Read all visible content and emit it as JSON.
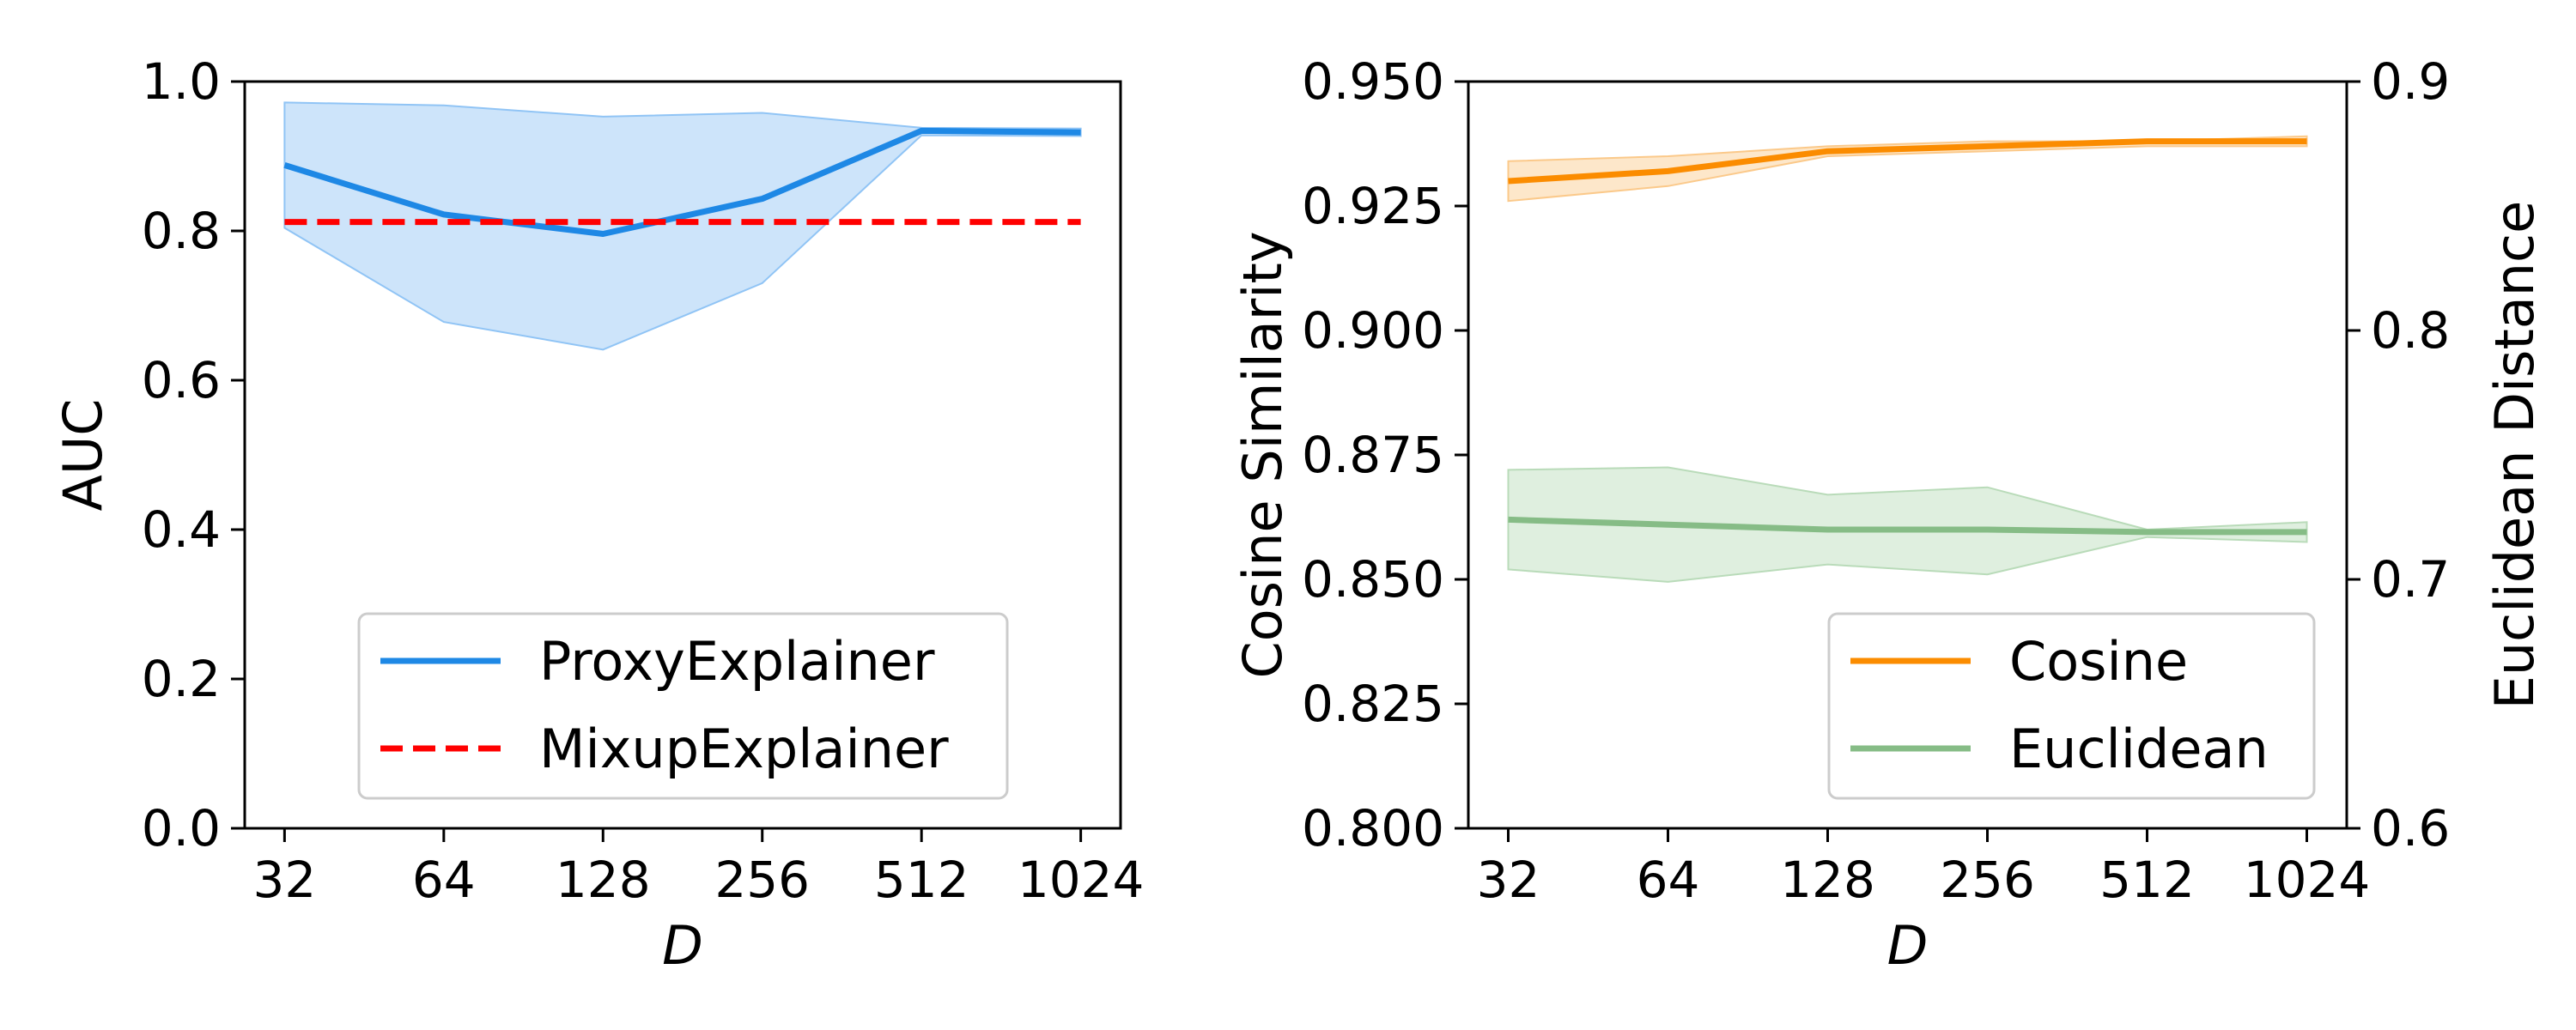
{
  "chart_data": [
    {
      "type": "line",
      "x": [
        32,
        64,
        128,
        256,
        512,
        1024
      ],
      "x_scale": "log2",
      "xlabel": "D",
      "ylabel": "AUC",
      "ylim": [
        0.0,
        1.0
      ],
      "xticks": [
        "32",
        "64",
        "128",
        "256",
        "512",
        "1024"
      ],
      "yticks": [
        "0.0",
        "0.2",
        "0.4",
        "0.6",
        "0.8",
        "1.0"
      ],
      "grid": false,
      "legend_position": "lower-right",
      "series": [
        {
          "name": "ProxyExplainer",
          "values": [
            0.888,
            0.822,
            0.796,
            0.843,
            0.934,
            0.932
          ],
          "band_upper": [
            0.972,
            0.968,
            0.953,
            0.958,
            0.938,
            0.937
          ],
          "band_lower": [
            0.804,
            0.678,
            0.641,
            0.73,
            0.928,
            0.927
          ],
          "color": "#1e88e5",
          "band_color": "#90c4f5",
          "style": "solid"
        },
        {
          "name": "MixupExplainer",
          "values": [
            0.812,
            0.812,
            0.812,
            0.812,
            0.812,
            0.812
          ],
          "color": "#ff0000",
          "style": "dashed"
        }
      ]
    },
    {
      "type": "line",
      "x": [
        32,
        64,
        128,
        256,
        512,
        1024
      ],
      "x_scale": "log2",
      "xlabel": "D",
      "ylabel": "Cosine Similarity",
      "ylabel_right": "Euclidean Distance",
      "ylim": [
        0.8,
        0.95
      ],
      "ylim_right": [
        0.6,
        0.9
      ],
      "xticks": [
        "32",
        "64",
        "128",
        "256",
        "512",
        "1024"
      ],
      "yticks": [
        "0.800",
        "0.825",
        "0.850",
        "0.875",
        "0.900",
        "0.925",
        "0.950"
      ],
      "yticks_right": [
        "0.6",
        "0.7",
        "0.8",
        "0.9"
      ],
      "grid": false,
      "legend_position": "lower-right",
      "series": [
        {
          "name": "Cosine",
          "axis": "left",
          "values": [
            0.93,
            0.932,
            0.936,
            0.937,
            0.938,
            0.938
          ],
          "band_upper": [
            0.934,
            0.935,
            0.937,
            0.938,
            0.938,
            0.939
          ],
          "band_lower": [
            0.926,
            0.929,
            0.935,
            0.936,
            0.937,
            0.937
          ],
          "color": "#fb8c00",
          "band_color": "#fbc98a",
          "style": "solid"
        },
        {
          "name": "Euclidean",
          "axis": "right",
          "values": [
            0.724,
            0.722,
            0.72,
            0.72,
            0.719,
            0.719
          ],
          "band_upper": [
            0.744,
            0.745,
            0.734,
            0.737,
            0.72,
            0.723
          ],
          "band_lower": [
            0.704,
            0.699,
            0.706,
            0.702,
            0.717,
            0.715
          ],
          "color": "#86bc86",
          "band_color": "#b9dbb9",
          "style": "solid"
        }
      ]
    }
  ]
}
